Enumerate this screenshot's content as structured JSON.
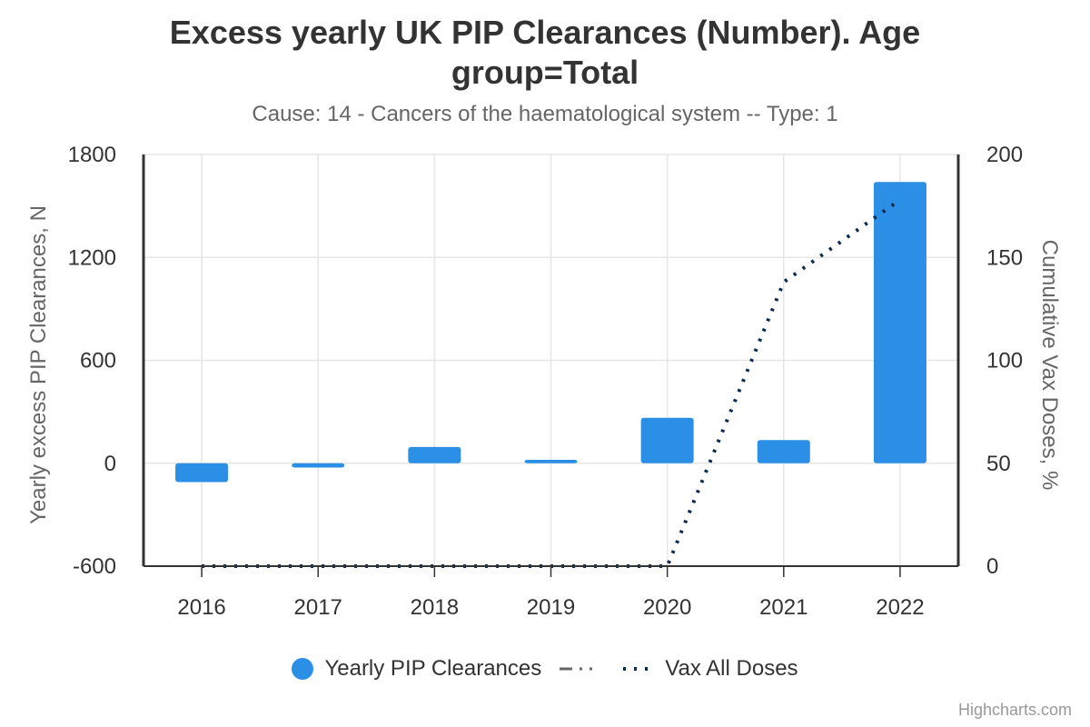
{
  "title": "Excess yearly UK PIP Clearances (Number). Age group=Total",
  "subtitle": "Cause: 14 - Cancers of the haematological system -- Type: 1",
  "credits": "Highcharts.com",
  "colors": {
    "bars": "#2b8fe6",
    "vax_line": "#0d2b4e",
    "legend_dash": "#666666",
    "grid": "#e6e6e6",
    "axis_line": "#333333"
  },
  "legend": {
    "items": [
      {
        "label": "Yearly PIP Clearances",
        "symbol": "circle"
      },
      {
        "label": "",
        "symbol": "dash-dot"
      },
      {
        "label": "Vax All Doses",
        "symbol": "dotted"
      }
    ]
  },
  "chart_data": {
    "type": "bar",
    "categories": [
      "2016",
      "2017",
      "2018",
      "2019",
      "2020",
      "2021",
      "2022"
    ],
    "series": [
      {
        "name": "Yearly PIP Clearances",
        "type": "bar",
        "axis": "left",
        "values": [
          -110,
          -25,
          95,
          20,
          265,
          135,
          1640
        ]
      },
      {
        "name": "Vax All Doses",
        "type": "line",
        "style": "dotted",
        "axis": "right",
        "values": [
          0,
          0,
          0,
          0,
          0,
          138,
          178
        ]
      }
    ],
    "y_left": {
      "label": "Yearly excess PIP Clearances, N",
      "min": -600,
      "max": 1800,
      "ticks": [
        -600,
        0,
        600,
        1200,
        1800
      ]
    },
    "y_right": {
      "label": "Cumulative Vax Doses, %",
      "min": 0,
      "max": 200,
      "ticks": [
        0,
        50,
        100,
        150,
        200
      ]
    },
    "grid": true,
    "legend_position": "bottom"
  }
}
